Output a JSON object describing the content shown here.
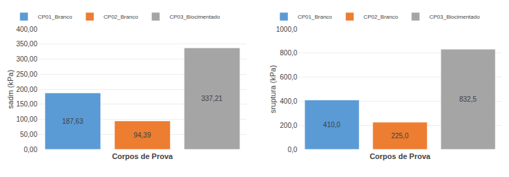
{
  "chart_data": [
    {
      "type": "bar",
      "categories": [
        "CP01_Branco",
        "CP02_Branco",
        "CP03_Biocimentado"
      ],
      "values": [
        187.63,
        94.39,
        337.21
      ],
      "value_labels": [
        "187,63",
        "94,39",
        "337,21"
      ],
      "colors": [
        "#5B9BD5",
        "#ED7D31",
        "#A5A5A5"
      ],
      "xlabel": "Corpos de Prova",
      "ylabel": "sadm (kPa)",
      "ylim": [
        0,
        400
      ],
      "yticks": [
        {
          "value": 0,
          "label": "0,00"
        },
        {
          "value": 50,
          "label": "50,00"
        },
        {
          "value": 100,
          "label": "100,00"
        },
        {
          "value": 150,
          "label": "150,00"
        },
        {
          "value": 200,
          "label": "200,00"
        },
        {
          "value": 250,
          "label": "250,00"
        },
        {
          "value": 300,
          "label": "300,00"
        },
        {
          "value": 350,
          "label": "350,00"
        },
        {
          "value": 400,
          "label": "400,00"
        }
      ],
      "grid": true,
      "legend": "upper left",
      "data_labels": true,
      "tick_labels": "y"
    },
    {
      "type": "bar",
      "categories": [
        "CP01_Branco",
        "CP02_Branco",
        "CP03_Biocimentado"
      ],
      "values": [
        410.0,
        225.0,
        832.5
      ],
      "value_labels": [
        "410,0",
        "225,0",
        "832,5"
      ],
      "colors": [
        "#5B9BD5",
        "#ED7D31",
        "#A5A5A5"
      ],
      "xlabel": "Corpos de Prova",
      "ylabel": "sruptura (kPa)",
      "ylim": [
        0,
        1000
      ],
      "yticks": [
        {
          "value": 0,
          "label": "0,0"
        },
        {
          "value": 200,
          "label": "200,0"
        },
        {
          "value": 400,
          "label": "400,0"
        },
        {
          "value": 600,
          "label": "600,0"
        },
        {
          "value": 800,
          "label": "800,0"
        },
        {
          "value": 1000,
          "label": "1000,0"
        }
      ],
      "grid": true,
      "legend": "upper left",
      "data_labels": true,
      "tick_labels": "y"
    }
  ]
}
